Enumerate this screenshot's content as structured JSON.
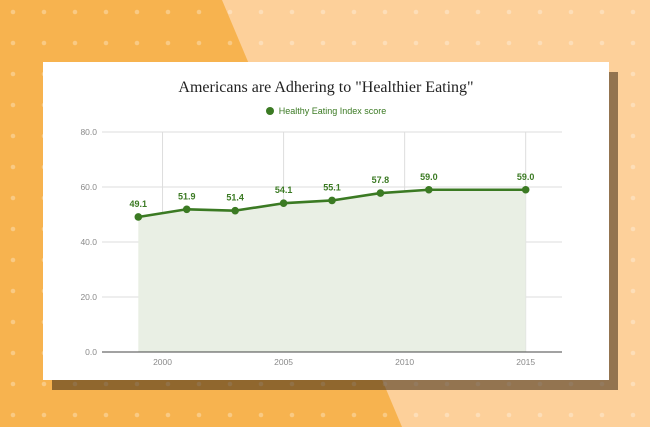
{
  "colors": {
    "page_background": "#f7b34f",
    "background_stripe": "#fdd09a",
    "line": "#3b7a23",
    "area_fill": "#e9efe4"
  },
  "chart_data": {
    "type": "area",
    "title": "Americans are Adhering to \"Healthier Eating\"",
    "xlabel": "",
    "ylabel": "",
    "legend": {
      "position": "top-center",
      "entries": [
        "Healthy Eating Index score"
      ]
    },
    "grid": true,
    "xlim": [
      1997.5,
      2016.5
    ],
    "ylim": [
      0,
      80
    ],
    "x_ticks": [
      2000,
      2005,
      2010,
      2015
    ],
    "y_ticks": [
      "0.0",
      "20.0",
      "40.0",
      "60.0",
      "80.0"
    ],
    "series": [
      {
        "name": "Healthy Eating Index score",
        "x": [
          1999,
          2001,
          2003,
          2005,
          2007,
          2009,
          2011,
          2015
        ],
        "values": [
          49.1,
          51.9,
          51.4,
          54.1,
          55.1,
          57.8,
          59.0,
          59.0
        ],
        "labels": [
          "49.1",
          "51.9",
          "51.4",
          "54.1",
          "55.1",
          "57.8",
          "59.0",
          "59.0"
        ]
      }
    ]
  }
}
